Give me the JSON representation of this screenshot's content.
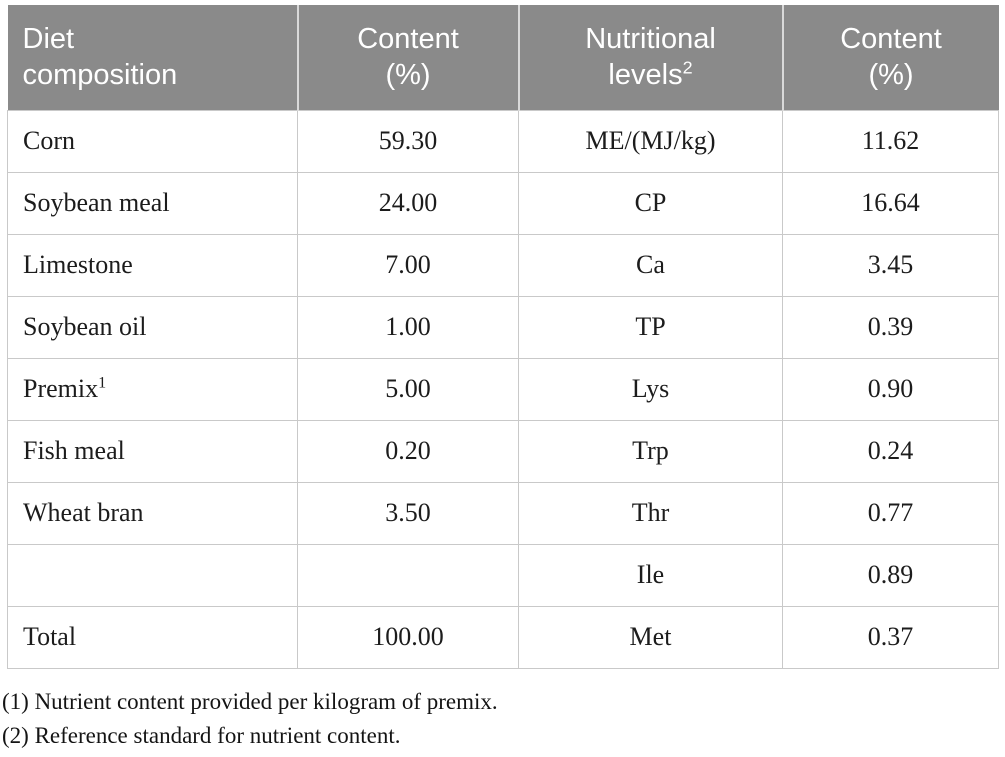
{
  "colors": {
    "header_bg": "#8a8a8a",
    "header_text": "#ffffff",
    "header_separator": "#d9d9d9",
    "cell_border": "#c9c9c9",
    "body_text": "#1c1c1c"
  },
  "table": {
    "header": [
      {
        "line1": "Diet",
        "line2": "composition",
        "sup": ""
      },
      {
        "line1": "Content",
        "line2": "(%)",
        "sup": ""
      },
      {
        "line1": "Nutritional",
        "line2": "levels",
        "sup": "2"
      },
      {
        "line1": "Content",
        "line2": "(%)",
        "sup": ""
      }
    ],
    "rows": [
      {
        "ingredient": "Corn",
        "ingredient_sup": "",
        "content": "59.30",
        "nutrient": "ME/(MJ/kg)",
        "value": "11.62"
      },
      {
        "ingredient": "Soybean meal",
        "ingredient_sup": "",
        "content": "24.00",
        "nutrient": "CP",
        "value": "16.64"
      },
      {
        "ingredient": "Limestone",
        "ingredient_sup": "",
        "content": "7.00",
        "nutrient": "Ca",
        "value": "3.45"
      },
      {
        "ingredient": "Soybean oil",
        "ingredient_sup": "",
        "content": "1.00",
        "nutrient": "TP",
        "value": "0.39"
      },
      {
        "ingredient": "Premix",
        "ingredient_sup": "1",
        "content": "5.00",
        "nutrient": "Lys",
        "value": "0.90"
      },
      {
        "ingredient": "Fish meal",
        "ingredient_sup": "",
        "content": "0.20",
        "nutrient": "Trp",
        "value": "0.24"
      },
      {
        "ingredient": "Wheat bran",
        "ingredient_sup": "",
        "content": "3.50",
        "nutrient": "Thr",
        "value": "0.77"
      },
      {
        "ingredient": "",
        "ingredient_sup": "",
        "content": "",
        "nutrient": "Ile",
        "value": "0.89"
      },
      {
        "ingredient": "Total",
        "ingredient_sup": "",
        "content": "100.00",
        "nutrient": "Met",
        "value": "0.37"
      }
    ],
    "footnotes": [
      "(1) Nutrient content provided per kilogram of premix.",
      "(2) Reference standard for nutrient content."
    ]
  }
}
